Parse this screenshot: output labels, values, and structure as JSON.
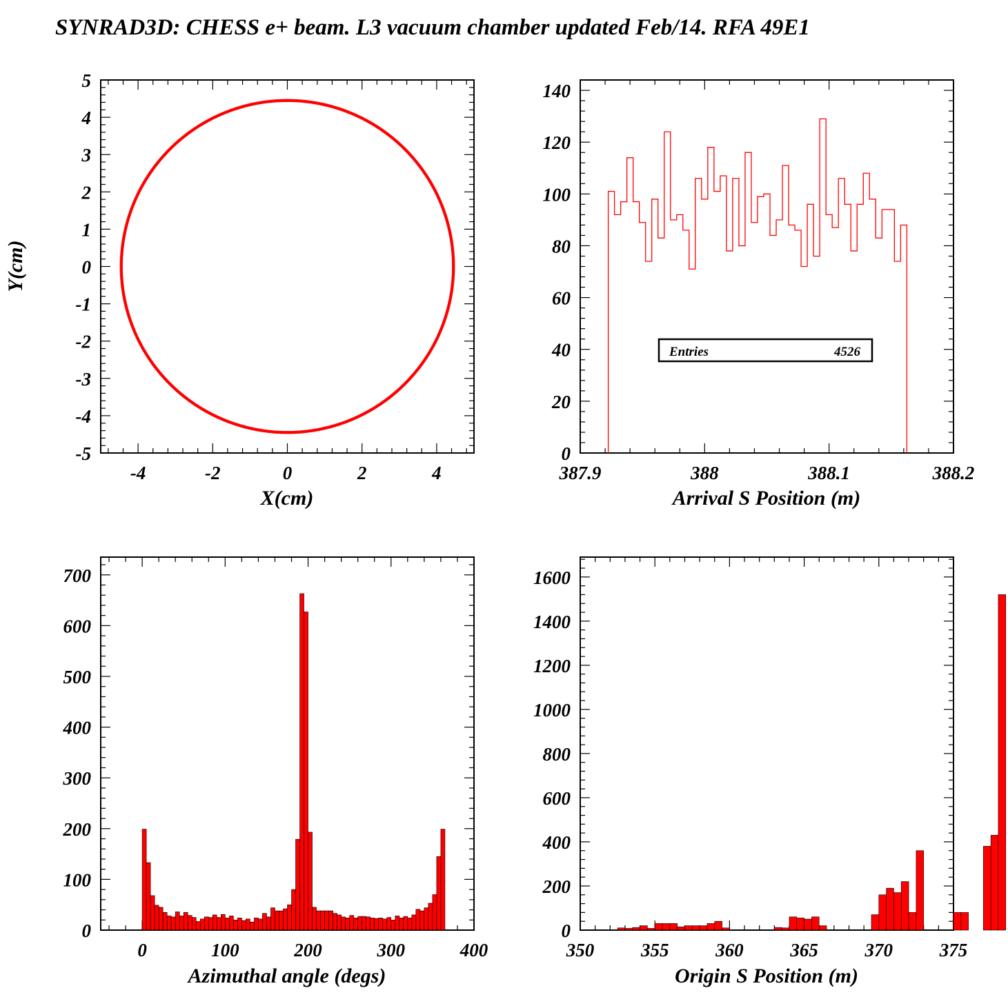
{
  "title": "SYNRAD3D: CHESS e+ beam. L3 vacuum chamber updated Feb/14. RFA 49E1",
  "colors": {
    "fill": "#ff0000",
    "line": "#ff0000",
    "frame": "#000000"
  },
  "chart_data": [
    {
      "id": "xy",
      "type": "scatter",
      "title": "",
      "xlabel": "X(cm)",
      "ylabel": "Y(cm)",
      "xlim": [
        -5,
        5
      ],
      "ylim": [
        -5,
        5
      ],
      "xticks": [
        -4,
        -2,
        0,
        2,
        4
      ],
      "yticks": [
        -5,
        -4,
        -3,
        -2,
        -1,
        0,
        1,
        2,
        3,
        4,
        5
      ],
      "xtick_labels": [
        "-4",
        "-2",
        "0",
        "2",
        "4"
      ],
      "ytick_labels": [
        "-5",
        "-4",
        "-3",
        "-2",
        "-1",
        "0",
        "1",
        "2",
        "3",
        "4",
        "5"
      ],
      "shape": "circle of hit points",
      "radius": 4.45,
      "center": [
        0,
        0
      ]
    },
    {
      "id": "arrival",
      "type": "bar",
      "style": "outline histogram",
      "title": "",
      "xlabel": "Arrival S Position (m)",
      "ylabel": "",
      "xlim": [
        387.9,
        388.2
      ],
      "ylim": [
        0,
        144
      ],
      "xticks": [
        387.9,
        388,
        388.1,
        388.2
      ],
      "xtick_labels": [
        "387.9",
        "388",
        "388.1",
        "388.2"
      ],
      "yticks": [
        0,
        20,
        40,
        60,
        80,
        100,
        120,
        140
      ],
      "ytick_labels": [
        "0",
        "20",
        "40",
        "60",
        "80",
        "100",
        "120",
        "140"
      ],
      "bin_start": 387.9225,
      "bin_width": 0.005,
      "values": [
        101,
        92,
        97,
        114,
        97,
        89,
        74,
        98,
        83,
        124,
        90,
        92,
        86,
        71,
        106,
        98,
        118,
        101,
        107,
        78,
        106,
        80,
        116,
        89,
        99,
        100,
        84,
        90,
        111,
        88,
        86,
        72,
        96,
        76,
        129,
        92,
        87,
        106,
        96,
        78,
        96,
        108,
        98,
        83,
        94,
        94,
        74,
        88
      ],
      "stats": {
        "label": "Entries",
        "value": "4526"
      }
    },
    {
      "id": "azimuth",
      "type": "bar",
      "style": "filled histogram",
      "title": "",
      "xlabel": "Azimuthal angle (degs)",
      "ylabel": "",
      "xlim": [
        -50,
        400
      ],
      "ylim": [
        0,
        735
      ],
      "xticks": [
        0,
        100,
        200,
        300,
        400
      ],
      "xtick_labels": [
        "0",
        "100",
        "200",
        "300",
        "400"
      ],
      "yticks": [
        0,
        100,
        200,
        300,
        400,
        500,
        600,
        700
      ],
      "ytick_labels": [
        "0",
        "100",
        "200",
        "300",
        "400",
        "500",
        "600",
        "700"
      ],
      "bin_start": 0,
      "bin_width": 5,
      "values": [
        199,
        133,
        68,
        49,
        45,
        35,
        28,
        26,
        36,
        28,
        35,
        29,
        25,
        17,
        22,
        26,
        25,
        30,
        25,
        31,
        24,
        28,
        20,
        24,
        19,
        22,
        16,
        24,
        22,
        33,
        26,
        44,
        38,
        38,
        42,
        50,
        80,
        179,
        663,
        627,
        193,
        45,
        38,
        38,
        38,
        38,
        33,
        30,
        26,
        24,
        29,
        24,
        27,
        27,
        26,
        24,
        23,
        24,
        22,
        25,
        20,
        28,
        24,
        27,
        24,
        30,
        41,
        38,
        44,
        53,
        70,
        145,
        199
      ]
    },
    {
      "id": "origin",
      "type": "bar",
      "style": "filled histogram",
      "title": "",
      "xlabel": "Origin S Position (m)",
      "ylabel": "",
      "xlim": [
        350,
        375
      ],
      "ylim": [
        0,
        1690
      ],
      "xticks": [
        350,
        355,
        360,
        365,
        370,
        375
      ],
      "xtick_labels": [
        "350",
        "355",
        "360",
        "365",
        "370",
        "375"
      ],
      "yticks": [
        0,
        200,
        400,
        600,
        800,
        1000,
        1200,
        1400,
        1600
      ],
      "ytick_labels": [
        "0",
        "200",
        "400",
        "600",
        "800",
        "1000",
        "1200",
        "1400",
        "1600"
      ],
      "bin_start": 350,
      "bin_width": 0.5,
      "values": [
        2,
        2,
        2,
        2,
        2,
        10,
        8,
        12,
        20,
        8,
        30,
        30,
        30,
        15,
        20,
        20,
        20,
        30,
        40,
        10,
        2,
        2,
        2,
        2,
        2,
        2,
        12,
        10,
        60,
        55,
        50,
        60,
        20,
        0,
        0,
        0,
        0,
        0,
        0,
        70,
        160,
        190,
        170,
        220,
        80,
        360,
        0,
        0,
        0,
        0,
        80,
        80,
        0,
        0,
        380,
        430,
        1520
      ]
    }
  ]
}
